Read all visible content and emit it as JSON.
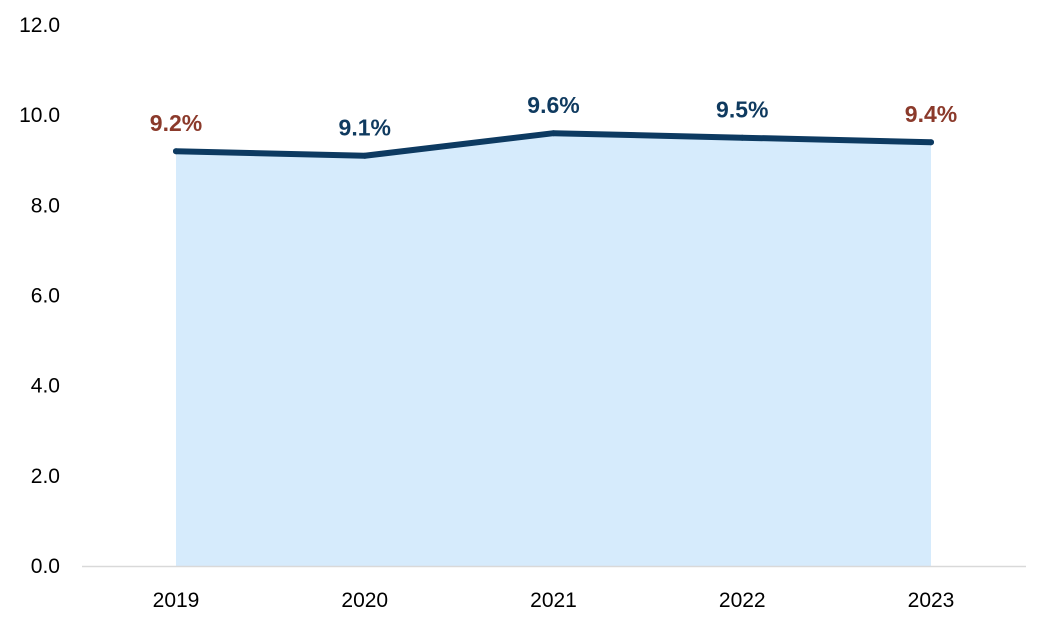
{
  "chart_data": {
    "type": "area",
    "title": "",
    "xlabel": "",
    "ylabel": "",
    "categories": [
      "2019",
      "2020",
      "2021",
      "2022",
      "2023"
    ],
    "values": [
      9.2,
      9.1,
      9.6,
      9.5,
      9.4
    ],
    "data_labels": [
      "9.2%",
      "9.1%",
      "9.6%",
      "9.5%",
      "9.4%"
    ],
    "data_label_colors": [
      "#8B3A2B",
      "#0F3A5F",
      "#0F3A5F",
      "#0F3A5F",
      "#8B3A2B"
    ],
    "y_ticks": [
      "0.0",
      "2.0",
      "4.0",
      "6.0",
      "8.0",
      "10.0",
      "12.0"
    ],
    "ylim": [
      0,
      12
    ],
    "grid": false,
    "legend": "none",
    "colors": {
      "line": "#0D3A61",
      "area": "#D6EBFC",
      "axis": "#D9D9D9"
    }
  }
}
